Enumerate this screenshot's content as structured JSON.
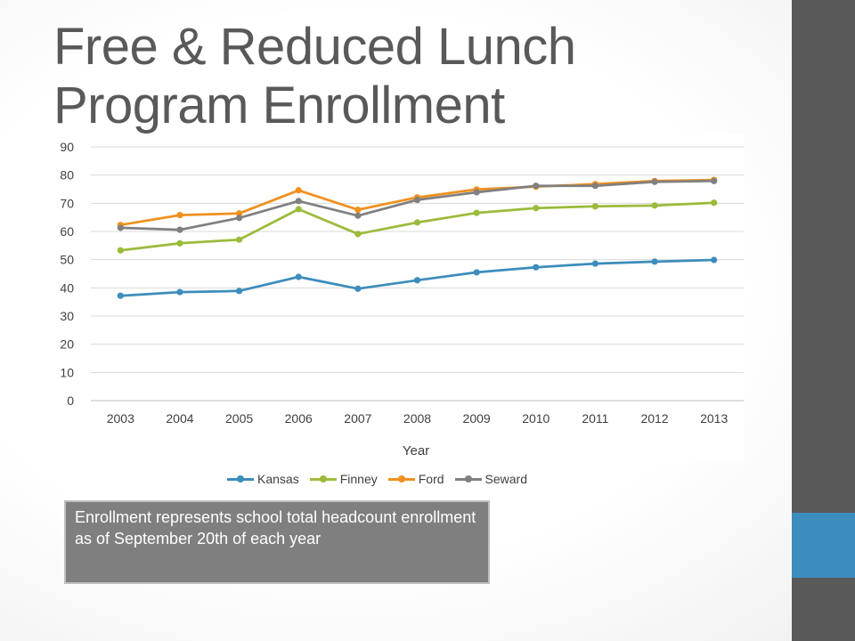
{
  "slide": {
    "title_line1": "Free & Reduced Lunch",
    "title_line2": "Program Enrollment",
    "note": "Enrollment represents school total headcount enrollment as of September 20th of each year"
  },
  "chart_data": {
    "type": "line",
    "title": "",
    "xlabel": "Year",
    "ylabel": "",
    "ylim": [
      0,
      90
    ],
    "yticks": [
      0,
      10,
      20,
      30,
      40,
      50,
      60,
      70,
      80,
      90
    ],
    "grid": true,
    "legend_position": "bottom",
    "categories": [
      "2003",
      "2004",
      "2005",
      "2006",
      "2007",
      "2008",
      "2009",
      "2010",
      "2011",
      "2012",
      "2013"
    ],
    "series": [
      {
        "name": "Kansas",
        "color": "#3c8dbc",
        "values": [
          37.2,
          38.5,
          38.9,
          43.9,
          39.7,
          42.7,
          45.5,
          47.3,
          48.6,
          49.3,
          49.9
        ]
      },
      {
        "name": "Finney",
        "color": "#9bbb3b",
        "values": [
          53.3,
          55.8,
          57.1,
          67.9,
          59.1,
          63.2,
          66.6,
          68.3,
          68.9,
          69.2,
          70.2
        ]
      },
      {
        "name": "Ford",
        "color": "#f0901e",
        "values": [
          62.3,
          65.8,
          66.4,
          74.6,
          67.7,
          72.1,
          74.9,
          75.9,
          76.8,
          77.9,
          78.3
        ]
      },
      {
        "name": "Seward",
        "color": "#808080",
        "values": [
          61.3,
          60.6,
          64.8,
          70.8,
          65.6,
          71.2,
          73.9,
          76.2,
          76.2,
          77.6,
          77.9
        ]
      }
    ]
  }
}
